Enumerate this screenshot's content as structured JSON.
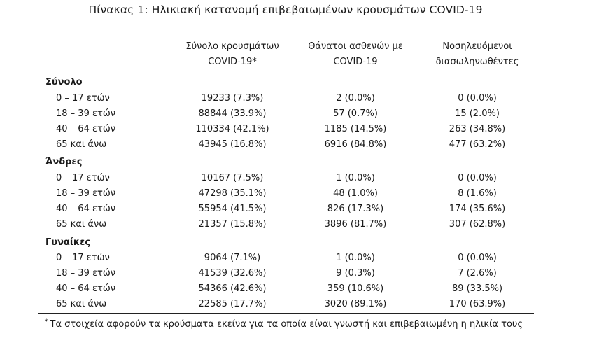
{
  "title": "Πίνακας 1: Ηλικιακή κατανομή επιβεβαιωμένων κρουσμάτων COVID-19",
  "columns": [
    {
      "line1": "Σύνολο κρουσμάτων",
      "line2": "COVID-19*"
    },
    {
      "line1": "Θάνατοι ασθενών με",
      "line2": "COVID-19"
    },
    {
      "line1": "Νοσηλευόμενοι",
      "line2": "διασωληνωθέντες"
    }
  ],
  "groups": [
    {
      "title": "Σύνολο",
      "rows": [
        {
          "label": "0 – 17 ετών",
          "cases": "19233 (7.3%)",
          "deaths": "2 (0.0%)",
          "intubated": "0 (0.0%)"
        },
        {
          "label": "18 – 39 ετών",
          "cases": "88844 (33.9%)",
          "deaths": "57 (0.7%)",
          "intubated": "15 (2.0%)"
        },
        {
          "label": "40 – 64 ετών",
          "cases": "110334 (42.1%)",
          "deaths": "1185 (14.5%)",
          "intubated": "263 (34.8%)"
        },
        {
          "label": "65 και άνω",
          "cases": "43945 (16.8%)",
          "deaths": "6916 (84.8%)",
          "intubated": "477 (63.2%)"
        }
      ]
    },
    {
      "title": "Άνδρες",
      "rows": [
        {
          "label": "0 – 17 ετών",
          "cases": "10167 (7.5%)",
          "deaths": "1 (0.0%)",
          "intubated": "0 (0.0%)"
        },
        {
          "label": "18 – 39 ετών",
          "cases": "47298 (35.1%)",
          "deaths": "48 (1.0%)",
          "intubated": "8 (1.6%)"
        },
        {
          "label": "40 – 64 ετών",
          "cases": "55954 (41.5%)",
          "deaths": "826 (17.3%)",
          "intubated": "174 (35.6%)"
        },
        {
          "label": "65 και άνω",
          "cases": "21357 (15.8%)",
          "deaths": "3896 (81.7%)",
          "intubated": "307 (62.8%)"
        }
      ]
    },
    {
      "title": "Γυναίκες",
      "rows": [
        {
          "label": "0 – 17 ετών",
          "cases": "9064 (7.1%)",
          "deaths": "1 (0.0%)",
          "intubated": "0 (0.0%)"
        },
        {
          "label": "18 – 39 ετών",
          "cases": "41539 (32.6%)",
          "deaths": "9 (0.3%)",
          "intubated": "7 (2.6%)"
        },
        {
          "label": "40 – 64 ετών",
          "cases": "54366 (42.6%)",
          "deaths": "359 (10.6%)",
          "intubated": "89 (33.5%)"
        },
        {
          "label": "65 και άνω",
          "cases": "22585 (17.7%)",
          "deaths": "3020 (89.1%)",
          "intubated": "170 (63.9%)"
        }
      ]
    }
  ],
  "footnote": {
    "marker": "*",
    "text": "Τα στοιχεία αφορούν τα κρούσματα εκείνα για τα οποία είναι γνωστή και επιβεβαιωμένη η ηλικία τους"
  }
}
